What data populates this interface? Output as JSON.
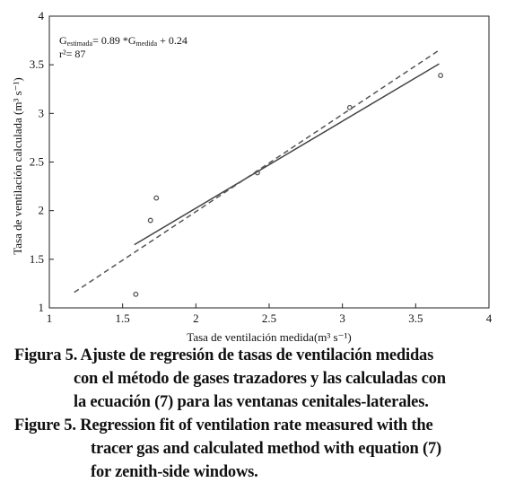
{
  "chart_data": {
    "type": "scatter",
    "x_label": "Tasa de ventilación medida(m³ s⁻¹)",
    "y_label": "Tasa de ventilación calculada (m³ s⁻¹)",
    "equation": {
      "t1": "G",
      "sub1": "estimada",
      "t2": "= 0.89 *G",
      "sub2": "medida",
      "t3": " + 0.24"
    },
    "r2": "r²= 87",
    "xlim": [
      1,
      4
    ],
    "xticks": [
      1,
      1.5,
      2,
      2.5,
      3,
      3.5,
      4
    ],
    "ylim": [
      1,
      4
    ],
    "yticks": [
      1,
      1.5,
      2,
      2.5,
      3,
      3.5,
      4
    ],
    "grid": false,
    "series": [
      {
        "type": "scatter",
        "color": "#555555",
        "x": [
          1.59,
          1.69,
          1.73,
          2.42,
          3.05,
          3.67
        ],
        "values": [
          1.14,
          1.9,
          2.13,
          2.39,
          3.06,
          3.39
        ]
      },
      {
        "type": "line",
        "color": "#444444",
        "dash": false,
        "x": [
          1.58,
          3.66
        ],
        "values": [
          1.65,
          3.51
        ]
      },
      {
        "type": "line",
        "color": "#555555",
        "dash": true,
        "x": [
          1.17,
          3.66
        ],
        "values": [
          1.16,
          3.65
        ]
      }
    ]
  },
  "caption": {
    "es": [
      "Figura 5. Ajuste de regresión de tasas de ventilación medidas",
      "con el método de gases trazadores y las calculadas con",
      "la ecuación (7) para las ventanas cenitales-laterales."
    ],
    "en": [
      "Figure 5. Regression fit of ventilation rate measured with the",
      "tracer gas and calculated method with equation (7)",
      "for zenith-side windows."
    ]
  }
}
